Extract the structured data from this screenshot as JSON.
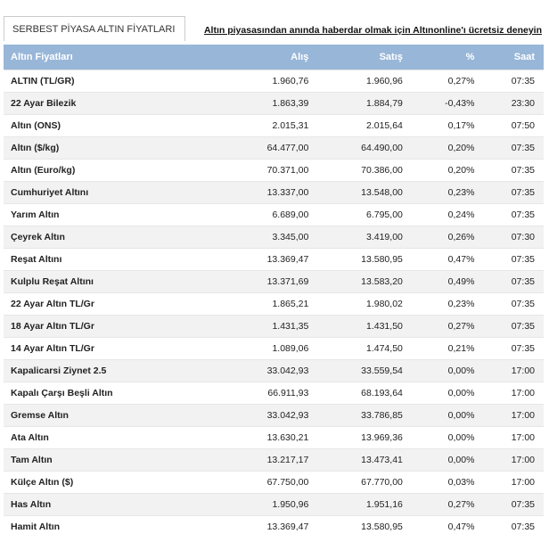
{
  "header": {
    "tab": "SERBEST PİYASA ALTIN FİYATLARI",
    "link": "Altın piyasasından anında haberdar olmak için Altınonline'ı ücretsiz deneyin"
  },
  "table": {
    "columns": [
      "Altın Fiyatları",
      "Alış",
      "Satış",
      "%",
      "Saat"
    ],
    "rows": [
      [
        "ALTIN (TL/GR)",
        "1.960,76",
        "1.960,96",
        "0,27%",
        "07:35"
      ],
      [
        "22 Ayar Bilezik",
        "1.863,39",
        "1.884,79",
        "-0,43%",
        "23:30"
      ],
      [
        "Altın (ONS)",
        "2.015,31",
        "2.015,64",
        "0,17%",
        "07:50"
      ],
      [
        "Altın ($/kg)",
        "64.477,00",
        "64.490,00",
        "0,20%",
        "07:35"
      ],
      [
        "Altın (Euro/kg)",
        "70.371,00",
        "70.386,00",
        "0,20%",
        "07:35"
      ],
      [
        "Cumhuriyet Altını",
        "13.337,00",
        "13.548,00",
        "0,23%",
        "07:35"
      ],
      [
        "Yarım Altın",
        "6.689,00",
        "6.795,00",
        "0,24%",
        "07:35"
      ],
      [
        "Çeyrek Altın",
        "3.345,00",
        "3.419,00",
        "0,26%",
        "07:30"
      ],
      [
        "Reşat Altını",
        "13.369,47",
        "13.580,95",
        "0,47%",
        "07:35"
      ],
      [
        "Kulplu Reşat Altını",
        "13.371,69",
        "13.583,20",
        "0,49%",
        "07:35"
      ],
      [
        "22 Ayar Altın TL/Gr",
        "1.865,21",
        "1.980,02",
        "0,23%",
        "07:35"
      ],
      [
        "18 Ayar Altın TL/Gr",
        "1.431,35",
        "1.431,50",
        "0,27%",
        "07:35"
      ],
      [
        "14 Ayar Altın TL/Gr",
        "1.089,06",
        "1.474,50",
        "0,21%",
        "07:35"
      ],
      [
        "Kapalicarsi Ziynet 2.5",
        "33.042,93",
        "33.559,54",
        "0,00%",
        "17:00"
      ],
      [
        "Kapalı Çarşı Beşli Altın",
        "66.911,93",
        "68.193,64",
        "0,00%",
        "17:00"
      ],
      [
        "Gremse Altın",
        "33.042,93",
        "33.786,85",
        "0,00%",
        "17:00"
      ],
      [
        "Ata Altın",
        "13.630,21",
        "13.969,36",
        "0,00%",
        "17:00"
      ],
      [
        "Tam Altın",
        "13.217,17",
        "13.473,41",
        "0,00%",
        "17:00"
      ],
      [
        "Külçe Altın ($)",
        "67.750,00",
        "67.770,00",
        "0,03%",
        "17:00"
      ],
      [
        "Has Altın",
        "1.950,96",
        "1.951,16",
        "0,27%",
        "07:35"
      ],
      [
        "Hamit Altın",
        "13.369,47",
        "13.580,95",
        "0,47%",
        "07:35"
      ]
    ]
  }
}
